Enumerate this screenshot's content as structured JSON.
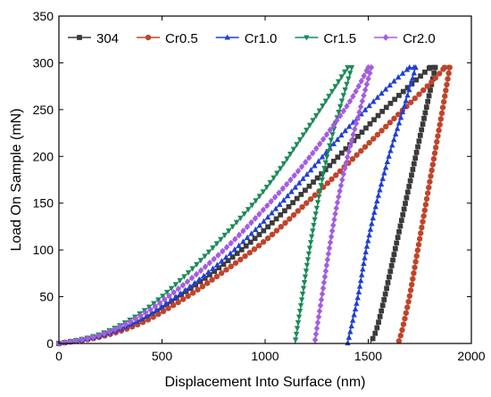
{
  "chart_data": {
    "type": "line",
    "title": "",
    "xlabel": "Displacement Into Surface (nm)",
    "ylabel": "Load On Sample (mN)",
    "xlim": [
      0,
      2000
    ],
    "ylim": [
      0,
      350
    ],
    "xticks": [
      0,
      500,
      1000,
      1500,
      2000
    ],
    "yticks": [
      0,
      50,
      100,
      150,
      200,
      250,
      300,
      350
    ],
    "grid": false,
    "legend_position": "top, horizontal",
    "series": [
      {
        "name": "304",
        "color": "#3b3b3b",
        "marker": "square",
        "peak_load": 295,
        "loading": {
          "x": [
            0,
            200,
            400,
            600,
            800,
            1000,
            1200,
            1400,
            1600,
            1800
          ],
          "y": [
            0,
            8,
            25,
            53,
            85,
            122,
            165,
            210,
            255,
            295
          ]
        },
        "hold": {
          "x": [
            1800,
            1825
          ],
          "y": [
            295,
            295
          ]
        },
        "unloading": {
          "x": [
            1825,
            1780,
            1730,
            1680,
            1630,
            1580,
            1540,
            1510
          ],
          "y": [
            295,
            250,
            200,
            150,
            100,
            50,
            15,
            0
          ]
        }
      },
      {
        "name": "Cr0.5",
        "color": "#c0442a",
        "marker": "circle",
        "peak_load": 295,
        "loading": {
          "x": [
            0,
            200,
            400,
            600,
            800,
            1000,
            1200,
            1400,
            1600,
            1800,
            1870
          ],
          "y": [
            0,
            7,
            22,
            47,
            77,
            110,
            150,
            192,
            235,
            278,
            295
          ]
        },
        "hold": {
          "x": [
            1870,
            1895
          ],
          "y": [
            295,
            295
          ]
        },
        "unloading": {
          "x": [
            1895,
            1860,
            1820,
            1780,
            1740,
            1700,
            1665,
            1645
          ],
          "y": [
            295,
            250,
            200,
            150,
            100,
            50,
            15,
            0
          ]
        }
      },
      {
        "name": "Cr1.0",
        "color": "#1f3fd6",
        "marker": "triangle-up",
        "peak_load": 295,
        "loading": {
          "x": [
            0,
            200,
            400,
            600,
            800,
            1000,
            1200,
            1400,
            1600,
            1700
          ],
          "y": [
            0,
            8,
            26,
            55,
            90,
            132,
            180,
            230,
            275,
            295
          ]
        },
        "hold": {
          "x": [
            1700,
            1730
          ],
          "y": [
            295,
            295
          ]
        },
        "unloading": {
          "x": [
            1730,
            1670,
            1600,
            1540,
            1490,
            1450,
            1415,
            1400
          ],
          "y": [
            295,
            250,
            200,
            150,
            100,
            50,
            15,
            0
          ]
        }
      },
      {
        "name": "Cr1.5",
        "color": "#1a8a5a",
        "marker": "triangle-down",
        "peak_load": 295,
        "loading": {
          "x": [
            0,
            200,
            400,
            600,
            800,
            1000,
            1200,
            1400
          ],
          "y": [
            0,
            10,
            33,
            70,
            115,
            165,
            228,
            295
          ]
        },
        "hold": {
          "x": [
            1400,
            1420
          ],
          "y": [
            295,
            295
          ]
        },
        "unloading": {
          "x": [
            1420,
            1360,
            1300,
            1255,
            1215,
            1180,
            1155,
            1145
          ],
          "y": [
            295,
            250,
            200,
            150,
            100,
            50,
            15,
            0
          ]
        }
      },
      {
        "name": "Cr2.0",
        "color": "#a35de0",
        "marker": "diamond",
        "peak_load": 295,
        "loading": {
          "x": [
            0,
            200,
            400,
            600,
            800,
            1000,
            1200,
            1400,
            1500
          ],
          "y": [
            0,
            9,
            30,
            62,
            100,
            145,
            195,
            255,
            295
          ]
        },
        "hold": {
          "x": [
            1500,
            1515
          ],
          "y": [
            295,
            295
          ]
        },
        "unloading": {
          "x": [
            1515,
            1460,
            1400,
            1350,
            1310,
            1275,
            1250,
            1240
          ],
          "y": [
            295,
            250,
            200,
            150,
            100,
            50,
            15,
            0
          ]
        }
      }
    ]
  }
}
